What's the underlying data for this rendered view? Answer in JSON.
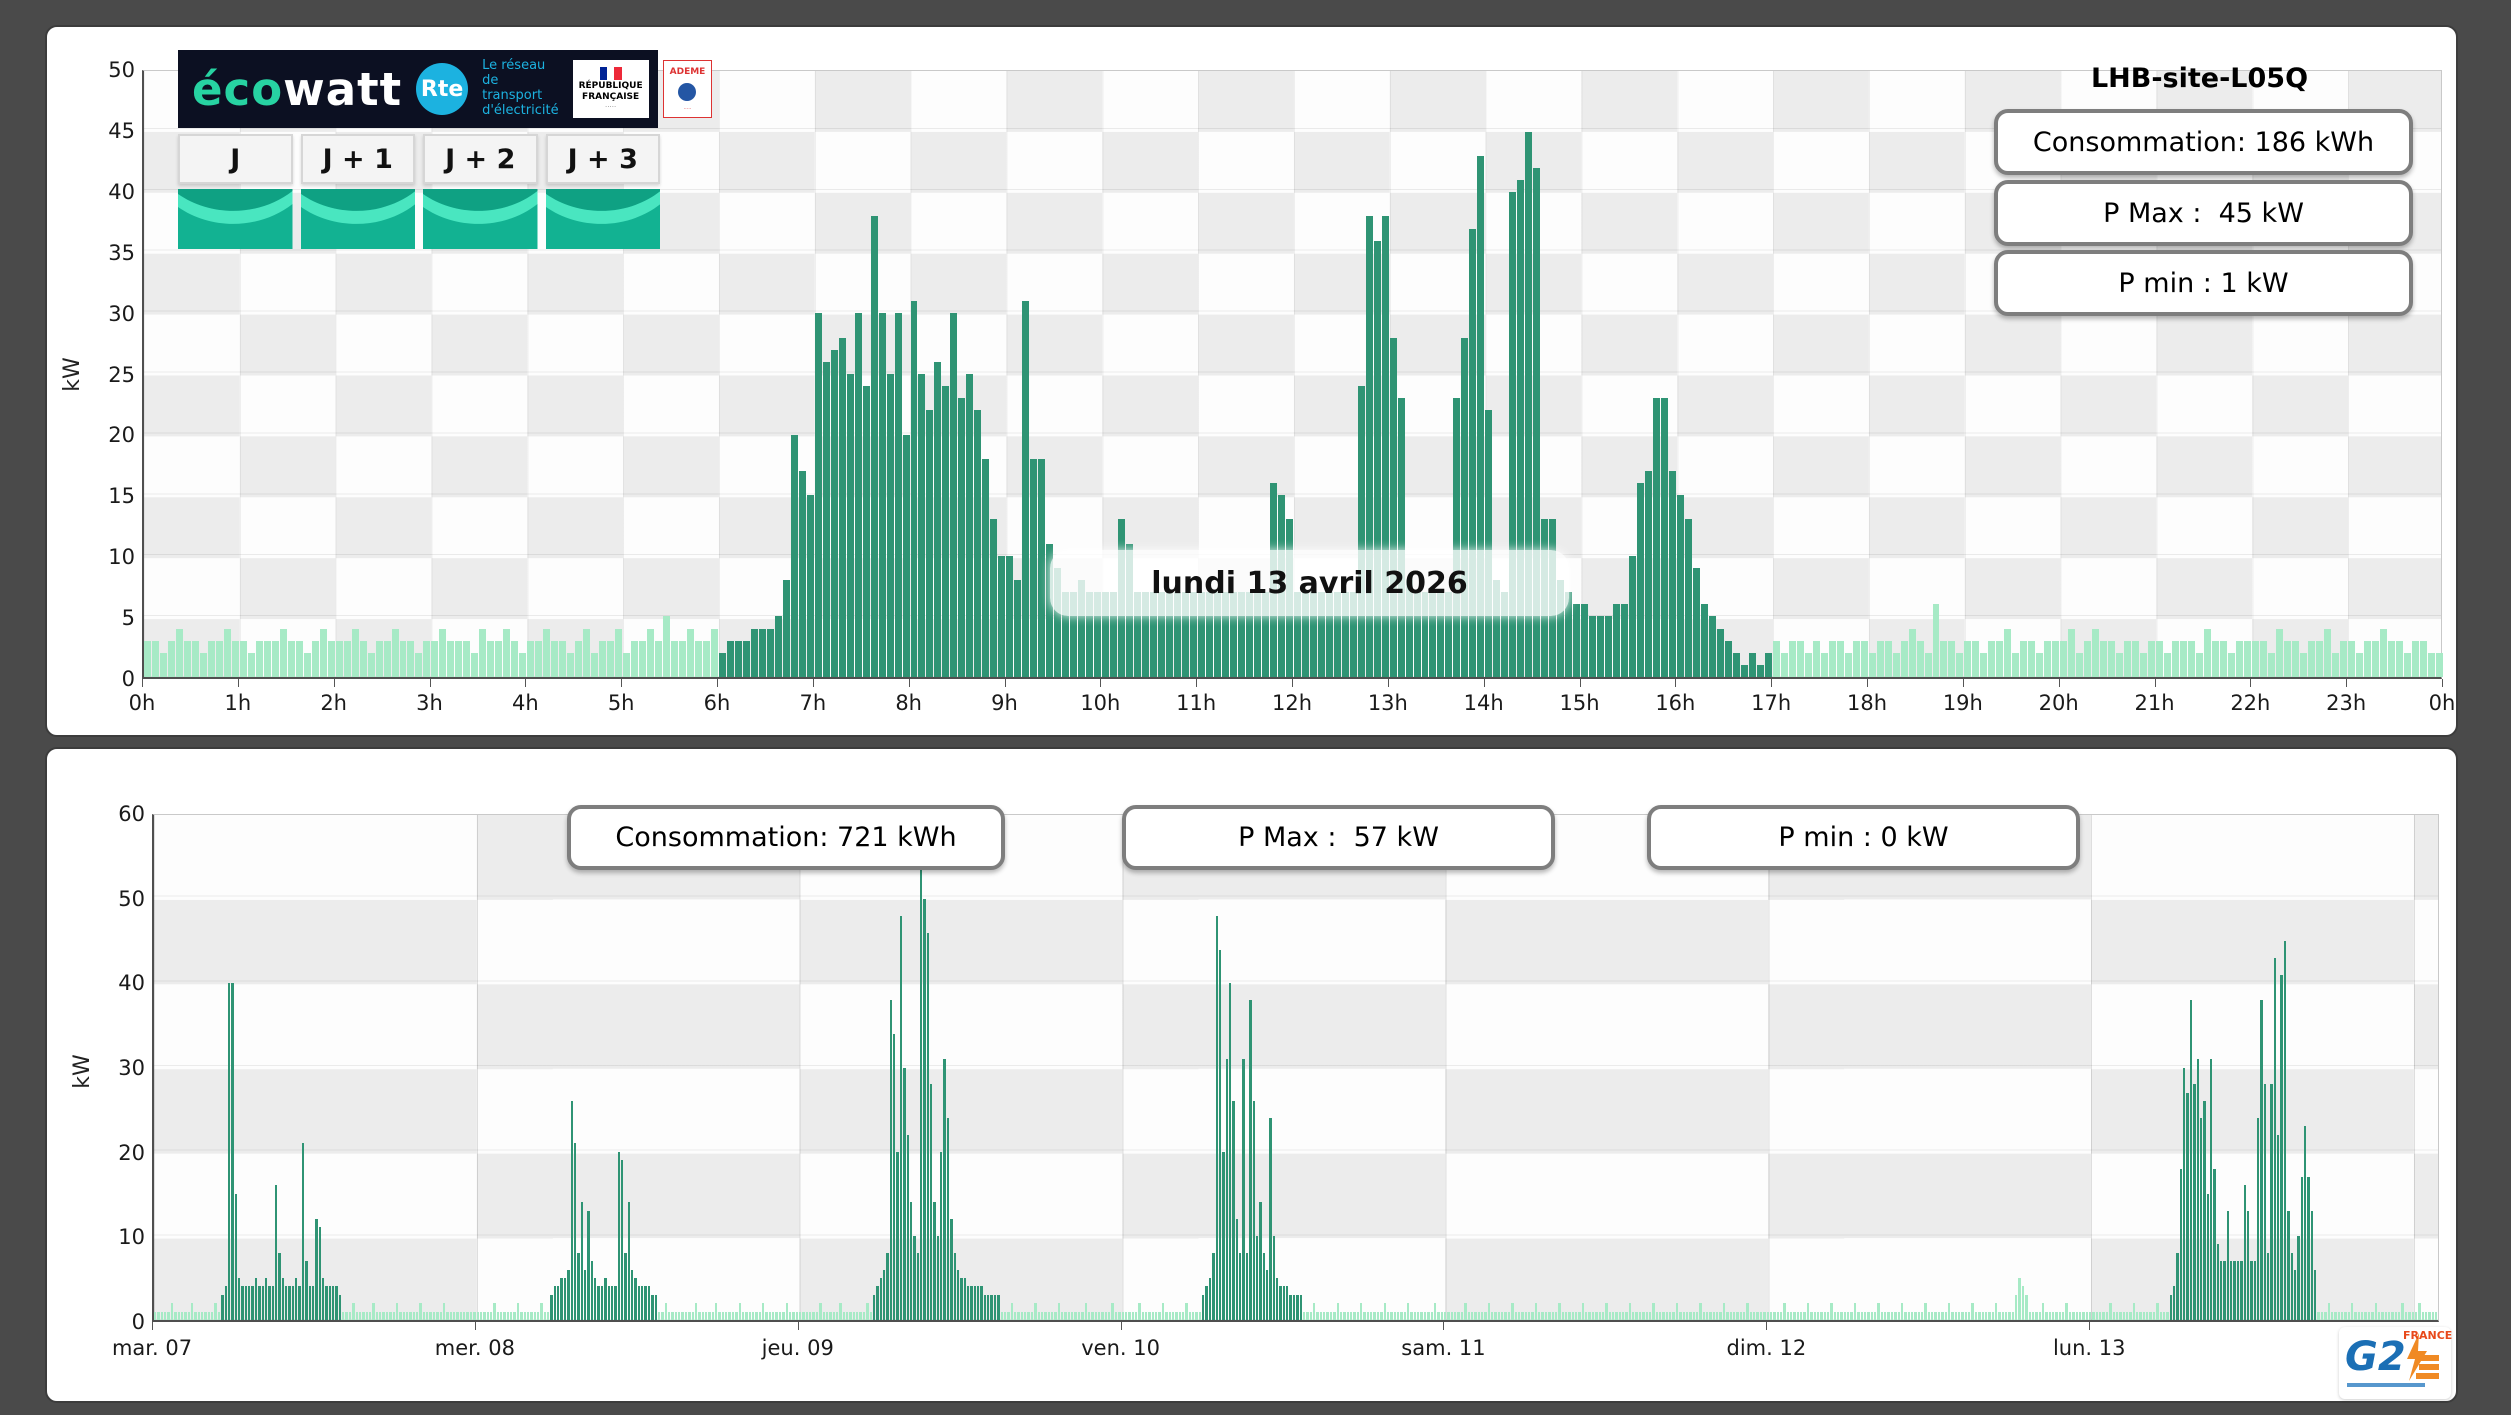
{
  "logo": {
    "eco": "éco",
    "watt": "watt",
    "rte": "Rte",
    "network_line1": "Le réseau",
    "network_line2": "de transport",
    "network_line3": "d'électricité",
    "rf_line1": "RÉPUBLIQUE",
    "rf_line2": "FRANÇAISE",
    "ademe": "ADEME"
  },
  "tiles": [
    {
      "label": "J"
    },
    {
      "label": "J + 1"
    },
    {
      "label": "J + 2"
    },
    {
      "label": "J + 3"
    }
  ],
  "top_chart": {
    "title": "LHB-site-L05Q",
    "stats": [
      "Consommation: 186 kWh",
      "P Max :  45 kW",
      "P min : 1 kW"
    ],
    "date_label": "lundi 13 avril 2026",
    "ylabel": "kW"
  },
  "bottom_chart": {
    "stats": [
      "Consommation: 721 kWh",
      "P Max :  57 kW",
      "P min : 0 kW"
    ],
    "ylabel": "kW"
  },
  "g2e": {
    "g2": "G2",
    "france": "FRANCE"
  },
  "colors": {
    "dark_bar": "#2f9474",
    "light_bar": "#a7eac6",
    "accent_teal": "#27d3a2",
    "rte_blue": "#1cb2e0",
    "logo_bg": "#0c1022"
  },
  "chart_data": [
    {
      "type": "bar",
      "title": "LHB-site-L05Q",
      "date_label": "lundi 13 avril 2026",
      "ylabel": "kW",
      "unit": "kW",
      "interval_minutes": 5,
      "ylim": [
        0,
        50
      ],
      "yticks": [
        0,
        5,
        10,
        15,
        20,
        25,
        30,
        35,
        40,
        45,
        50
      ],
      "xtick_labels": [
        "0h",
        "1h",
        "2h",
        "3h",
        "4h",
        "5h",
        "6h",
        "7h",
        "8h",
        "9h",
        "10h",
        "11h",
        "12h",
        "13h",
        "14h",
        "15h",
        "16h",
        "17h",
        "18h",
        "19h",
        "20h",
        "21h",
        "22h",
        "23h",
        "0h"
      ],
      "stats": {
        "consommation_kwh": 186,
        "p_max_kw": 45,
        "p_min_kw": 1
      },
      "dark_range": [
        72,
        204
      ],
      "values": [
        [
          3,
          3,
          2,
          3,
          4,
          3,
          3,
          2,
          3,
          3,
          4,
          3
        ],
        [
          3,
          2,
          3,
          3,
          3,
          4,
          3,
          3,
          2,
          3,
          4,
          3
        ],
        [
          3,
          3,
          4,
          3,
          2,
          3,
          3,
          4,
          3,
          3,
          2,
          3
        ],
        [
          3,
          4,
          3,
          3,
          3,
          2,
          4,
          3,
          3,
          4,
          3,
          2
        ],
        [
          3,
          3,
          4,
          3,
          3,
          2,
          3,
          4,
          2,
          3,
          3,
          4
        ],
        [
          2,
          3,
          3,
          4,
          3,
          5,
          3,
          3,
          4,
          3,
          3,
          4
        ],
        [
          2,
          3,
          3,
          3,
          4,
          4,
          4,
          5,
          8,
          20,
          17,
          15
        ],
        [
          30,
          26,
          27,
          28,
          25,
          30,
          24,
          38,
          30,
          25,
          30,
          20
        ],
        [
          31,
          25,
          22,
          26,
          24,
          30,
          23,
          25,
          22,
          18,
          13,
          10
        ],
        [
          10,
          8,
          31,
          18,
          18,
          11,
          9,
          7,
          7,
          8,
          7,
          7
        ],
        [
          7,
          7,
          13,
          11,
          7,
          7,
          7,
          7,
          7,
          7,
          7,
          7
        ],
        [
          7,
          7,
          7,
          7,
          7,
          7,
          7,
          7,
          7,
          16,
          15,
          13
        ],
        [
          7,
          7,
          7,
          7,
          7,
          7,
          7,
          7,
          24,
          38,
          36,
          38
        ],
        [
          28,
          23,
          8,
          7,
          7,
          7,
          7,
          7,
          23,
          28,
          37,
          43
        ],
        [
          22,
          8,
          7,
          40,
          41,
          45,
          42,
          13,
          13,
          8,
          7,
          6
        ],
        [
          6,
          5,
          5,
          5,
          6,
          6,
          10,
          16,
          17,
          23,
          23,
          17
        ],
        [
          15,
          13,
          9,
          6,
          5,
          4,
          3,
          2,
          1,
          2,
          1,
          2
        ],
        [
          3,
          2,
          3,
          3,
          2,
          3,
          2,
          3,
          3,
          2,
          3,
          3
        ],
        [
          2,
          3,
          3,
          2,
          3,
          4,
          3,
          2,
          6,
          3,
          3,
          2
        ],
        [
          3,
          3,
          2,
          3,
          3,
          4,
          2,
          3,
          3,
          2,
          3,
          3
        ],
        [
          3,
          4,
          2,
          3,
          4,
          3,
          3,
          2,
          3,
          3,
          2,
          3
        ],
        [
          3,
          2,
          3,
          3,
          3,
          2,
          4,
          3,
          3,
          2,
          3,
          3
        ],
        [
          3,
          3,
          2,
          4,
          3,
          3,
          2,
          3,
          3,
          4,
          2,
          3
        ],
        [
          3,
          2,
          3,
          3,
          4,
          3,
          3,
          2,
          3,
          3,
          2,
          2
        ]
      ]
    },
    {
      "type": "bar",
      "ylabel": "kW",
      "unit": "kW",
      "interval_minutes": 15,
      "ylim": [
        0,
        60
      ],
      "yticks": [
        0,
        10,
        20,
        30,
        40,
        50,
        60
      ],
      "xtick_labels": [
        "mar. 07",
        "mer. 08",
        "jeu. 09",
        "ven. 10",
        "sam. 11",
        "dim. 12",
        "lun. 13"
      ],
      "stats": {
        "consommation_kwh": 721,
        "p_max_kw": 57,
        "p_min_kw": 0
      },
      "dark_ranges": [
        [
          20,
          56
        ],
        [
          118,
          150
        ],
        [
          214,
          252
        ],
        [
          312,
          342
        ],
        [
          600,
          644
        ]
      ],
      "days": [
        [
          1,
          1,
          1,
          1,
          1,
          2,
          1,
          1,
          1,
          1,
          1,
          2,
          1,
          1,
          1,
          1,
          1,
          1,
          2,
          1,
          3,
          4,
          40,
          40,
          15,
          5,
          4,
          4,
          4,
          4,
          5,
          4,
          4,
          5,
          4,
          4,
          16,
          8,
          5,
          4,
          4,
          4,
          5,
          4,
          21,
          7,
          4,
          4,
          12,
          11,
          5,
          4,
          4,
          4,
          4,
          3,
          1,
          1,
          1,
          2,
          1,
          1,
          1,
          1,
          1,
          2,
          1,
          1,
          1,
          1,
          1,
          1,
          2,
          1,
          1,
          1,
          1,
          1,
          1,
          2,
          1,
          1,
          1,
          1,
          1,
          1,
          2,
          1,
          1,
          1,
          1,
          1,
          1,
          1,
          1,
          1
        ],
        [
          1,
          1,
          1,
          1,
          1,
          2,
          1,
          1,
          1,
          1,
          1,
          1,
          2,
          1,
          1,
          1,
          1,
          1,
          1,
          2,
          1,
          1,
          3,
          4,
          4,
          5,
          5,
          6,
          26,
          21,
          8,
          14,
          6,
          13,
          7,
          5,
          4,
          4,
          5,
          4,
          4,
          4,
          20,
          19,
          8,
          14,
          6,
          5,
          4,
          4,
          4,
          4,
          3,
          3,
          1,
          1,
          2,
          1,
          1,
          1,
          1,
          1,
          1,
          1,
          1,
          2,
          1,
          1,
          1,
          1,
          1,
          2,
          1,
          1,
          1,
          1,
          1,
          1,
          2,
          1,
          1,
          1,
          1,
          1,
          1,
          2,
          1,
          1,
          1,
          1,
          1,
          1,
          2,
          1,
          1,
          1
        ],
        [
          1,
          1,
          1,
          1,
          1,
          1,
          2,
          1,
          1,
          1,
          1,
          1,
          2,
          1,
          1,
          1,
          1,
          1,
          1,
          1,
          2,
          1,
          3,
          4,
          5,
          6,
          8,
          38,
          34,
          20,
          48,
          30,
          22,
          14,
          10,
          8,
          57,
          50,
          46,
          28,
          14,
          10,
          20,
          31,
          24,
          12,
          8,
          6,
          5,
          5,
          4,
          4,
          4,
          4,
          4,
          3,
          3,
          3,
          3,
          3,
          1,
          1,
          1,
          2,
          1,
          1,
          1,
          1,
          1,
          1,
          2,
          1,
          1,
          1,
          1,
          1,
          1,
          2,
          1,
          1,
          1,
          1,
          1,
          1,
          1,
          2,
          1,
          1,
          1,
          1,
          1,
          1,
          1,
          2,
          1,
          1
        ],
        [
          1,
          1,
          1,
          1,
          1,
          2,
          1,
          1,
          1,
          1,
          1,
          1,
          2,
          1,
          1,
          1,
          1,
          1,
          1,
          2,
          1,
          1,
          1,
          1,
          3,
          4,
          5,
          8,
          48,
          44,
          20,
          31,
          40,
          26,
          12,
          8,
          31,
          8,
          38,
          26,
          10,
          14,
          8,
          6,
          24,
          10,
          5,
          4,
          4,
          4,
          3,
          3,
          3,
          3,
          1,
          1,
          1,
          2,
          1,
          1,
          1,
          1,
          1,
          1,
          2,
          1,
          1,
          1,
          1,
          1,
          1,
          2,
          1,
          1,
          1,
          1,
          1,
          1,
          2,
          1,
          1,
          1,
          1,
          1,
          1,
          2,
          1,
          1,
          1,
          1,
          1,
          1,
          1,
          2,
          1,
          1
        ],
        [
          1,
          1,
          1,
          1,
          1,
          1,
          2,
          1,
          1,
          1,
          1,
          1,
          1,
          2,
          1,
          1,
          1,
          1,
          1,
          1,
          2,
          1,
          1,
          1,
          1,
          1,
          1,
          2,
          1,
          1,
          1,
          1,
          1,
          1,
          2,
          1,
          1,
          1,
          1,
          1,
          1,
          2,
          1,
          1,
          1,
          1,
          1,
          1,
          2,
          1,
          1,
          1,
          1,
          1,
          1,
          2,
          1,
          1,
          1,
          1,
          1,
          1,
          2,
          1,
          1,
          1,
          1,
          1,
          1,
          2,
          1,
          1,
          1,
          1,
          1,
          1,
          2,
          1,
          1,
          1,
          1,
          1,
          1,
          2,
          1,
          1,
          1,
          1,
          1,
          1,
          2,
          1,
          1,
          1,
          1,
          1
        ],
        [
          1,
          1,
          1,
          1,
          1,
          2,
          1,
          1,
          1,
          1,
          1,
          1,
          2,
          1,
          1,
          1,
          1,
          1,
          1,
          2,
          1,
          1,
          1,
          1,
          1,
          1,
          2,
          1,
          1,
          1,
          1,
          1,
          1,
          2,
          1,
          1,
          1,
          1,
          1,
          1,
          2,
          1,
          1,
          1,
          1,
          1,
          1,
          2,
          1,
          1,
          1,
          1,
          1,
          1,
          2,
          1,
          1,
          1,
          1,
          1,
          1,
          2,
          1,
          1,
          1,
          1,
          1,
          1,
          2,
          1,
          1,
          1,
          1,
          1,
          3,
          5,
          4,
          3,
          1,
          1,
          1,
          1,
          2,
          1,
          1,
          1,
          1,
          1,
          1,
          2,
          1,
          1,
          1,
          1,
          1,
          1
        ],
        [
          1,
          1,
          1,
          1,
          1,
          1,
          2,
          1,
          1,
          1,
          1,
          1,
          1,
          2,
          1,
          1,
          1,
          1,
          1,
          1,
          2,
          1,
          1,
          1,
          3,
          4,
          8,
          18,
          30,
          27,
          38,
          28,
          31,
          24,
          26,
          15,
          31,
          18,
          9,
          7,
          7,
          13,
          7,
          7,
          7,
          7,
          16,
          13,
          7,
          7,
          24,
          38,
          28,
          8,
          28,
          43,
          22,
          41,
          45,
          13,
          8,
          6,
          10,
          17,
          23,
          17,
          13,
          6,
          1,
          1,
          1,
          2,
          1,
          1,
          1,
          1,
          1,
          1,
          2,
          1,
          1,
          1,
          1,
          1,
          1,
          2,
          1,
          1,
          1,
          1,
          1,
          1,
          1,
          2,
          1,
          1
        ]
      ],
      "extra": [
        1,
        1,
        2,
        1,
        1,
        1,
        1,
        1
      ]
    }
  ]
}
